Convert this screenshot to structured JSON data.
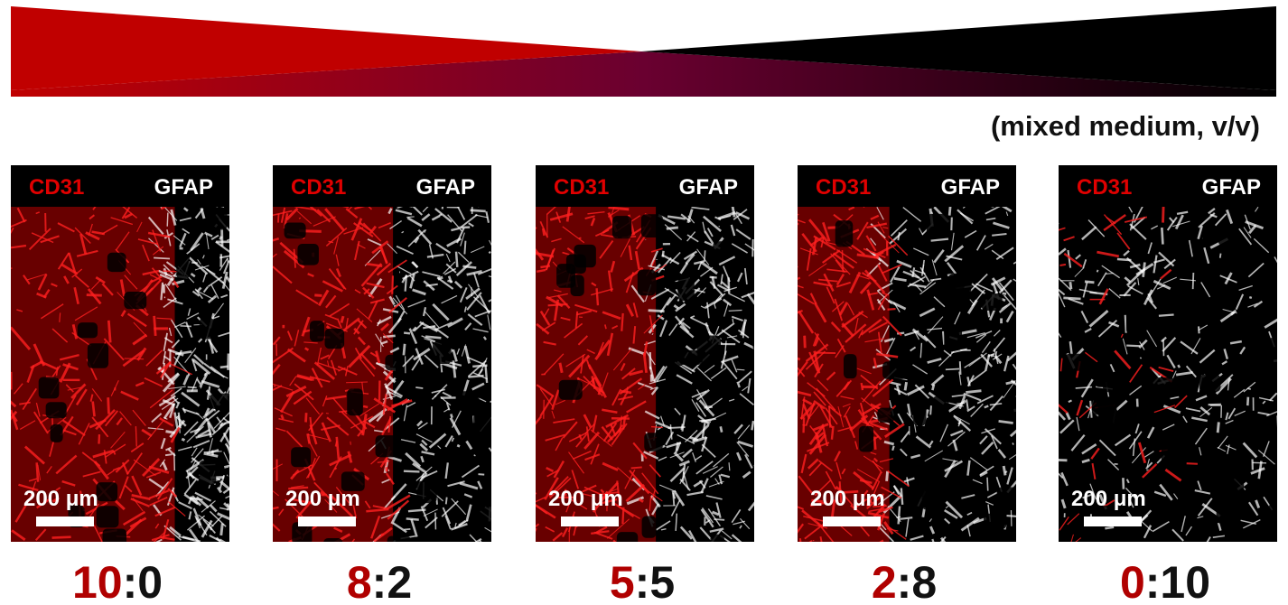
{
  "header": {
    "note": "(mixed medium, v/v)"
  },
  "panels": [
    {
      "channels": [
        "CD31",
        "GFAP"
      ],
      "scale_label": "200 μm",
      "ratio": [
        "10",
        ":",
        "0"
      ]
    },
    {
      "channels": [
        "CD31",
        "GFAP"
      ],
      "scale_label": "200 μm",
      "ratio": [
        "8",
        ":",
        "2"
      ]
    },
    {
      "channels": [
        "CD31",
        "GFAP"
      ],
      "scale_label": "200 μm",
      "ratio": [
        "5",
        ":",
        "5"
      ]
    },
    {
      "channels": [
        "CD31",
        "GFAP"
      ],
      "scale_label": "200 μm",
      "ratio": [
        "2",
        ":",
        "8"
      ]
    },
    {
      "channels": [
        "CD31",
        "GFAP"
      ],
      "scale_label": "200 μm",
      "ratio": [
        "0",
        ":",
        "10"
      ]
    }
  ]
}
